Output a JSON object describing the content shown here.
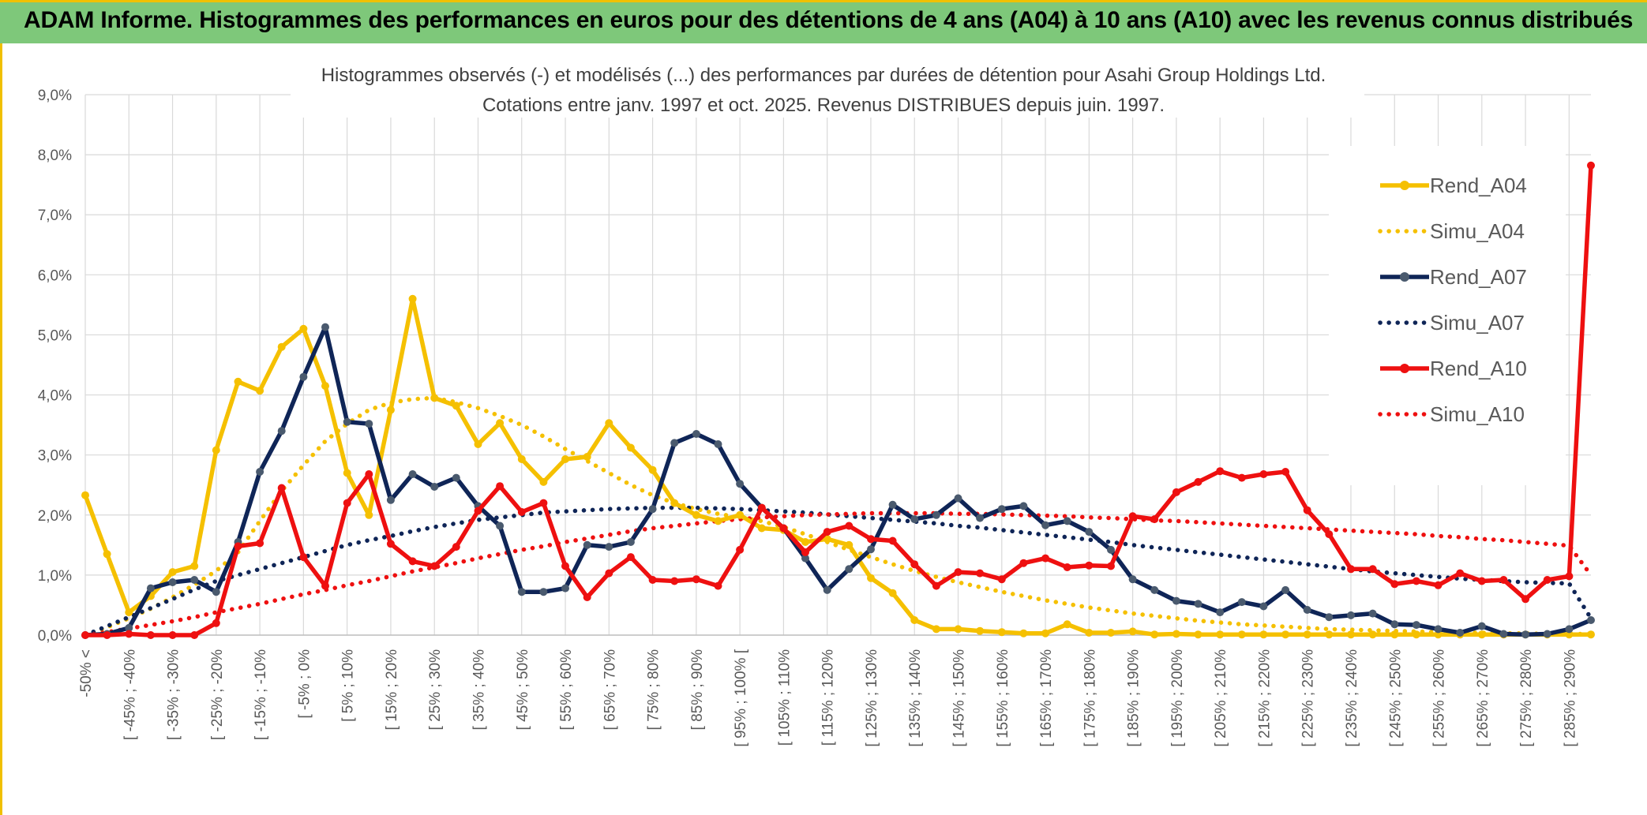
{
  "header": {
    "title": "ADAM Informe. Histogrammes des performances en euros pour des détentions de 4 ans (A04) à 10 ans (A10) avec les revenus connus distribués"
  },
  "colors": {
    "A04": "#f5c000",
    "A07": "#0f2557",
    "A10": "#ee1010",
    "banner": "#7ec87a",
    "grid": "#d9d9d9",
    "axis_text": "#595959"
  },
  "chart_data": {
    "type": "line",
    "title": "Histogrammes observés (-) et modélisés (...) des performances par durées de détention pour Asahi Group Holdings Ltd.",
    "subtitle": "Cotations entre janv. 1997 et oct. 2025. Revenus DISTRIBUES depuis juin. 1997.",
    "xlabel": "",
    "ylabel": "",
    "ylim": [
      0,
      9
    ],
    "y_ticks": [
      "0,0%",
      "1,0%",
      "2,0%",
      "3,0%",
      "4,0%",
      "5,0%",
      "6,0%",
      "7,0%",
      "8,0%",
      "9,0%"
    ],
    "grid": true,
    "legend_position": "right",
    "x_tick_labels": [
      "-50% <",
      "[ -45% ; -40%",
      "[ -35% ; -30%",
      "[ -25% ; -20%",
      "[ -15% ; -10%",
      "[ -5% ; 0%",
      "[ 5% ; 10%",
      "[ 15% ; 20%",
      "[ 25% ; 30%",
      "[ 35% ; 40%",
      "[ 45% ; 50%",
      "[ 55% ; 60%",
      "[ 65% ; 70%",
      "[ 75% ; 80%",
      "[ 85% ; 90%",
      "[ 95% ; 100% [",
      "[ 105% ; 110%",
      "[ 115% ; 120%",
      "[ 125% ; 130%",
      "[ 135% ; 140%",
      "[ 145% ; 150%",
      "[ 155% ; 160%",
      "[ 165% ; 170%",
      "[ 175% ; 180%",
      "[ 185% ; 190%",
      "[ 195% ; 200%",
      "[ 205% ; 210%",
      "[ 215% ; 220%",
      "[ 225% ; 230%",
      "[ 235% ; 240%",
      "[ 245% ; 250%",
      "[ 255% ; 260%",
      "[ 265% ; 270%",
      "[ 275% ; 280%",
      "[ 285% ; 290%"
    ],
    "categories_count": 70,
    "series": [
      {
        "name": "Rend_A04",
        "style": "solid",
        "color_key": "A04",
        "values": [
          2.33,
          1.35,
          0.38,
          0.65,
          1.05,
          1.15,
          3.08,
          4.22,
          4.07,
          4.8,
          5.1,
          4.15,
          2.7,
          2.0,
          3.75,
          5.6,
          3.95,
          3.82,
          3.18,
          3.53,
          2.93,
          2.55,
          2.93,
          2.97,
          3.53,
          3.12,
          2.75,
          2.2,
          2.0,
          1.9,
          2.0,
          1.78,
          1.75,
          1.55,
          1.6,
          1.5,
          0.95,
          0.7,
          0.25,
          0.1,
          0.1,
          0.07,
          0.05,
          0.03,
          0.03,
          0.18,
          0.04,
          0.04,
          0.06,
          0.01,
          0.02,
          0.01,
          0.01,
          0.01,
          0.01,
          0.01,
          0.01,
          0.01,
          0.01,
          0.01,
          0.01,
          0.01,
          0.01,
          0.01,
          0.01,
          0.01,
          0.01,
          0.01,
          0.01,
          0.01
        ]
      },
      {
        "name": "Simu_A04",
        "style": "dotted",
        "color_key": "A04",
        "values": [
          0.0,
          0.13,
          0.28,
          0.44,
          0.63,
          0.84,
          1.07,
          1.38,
          1.9,
          2.4,
          2.83,
          3.23,
          3.52,
          3.75,
          3.87,
          3.93,
          3.95,
          3.88,
          3.78,
          3.65,
          3.5,
          3.31,
          3.1,
          2.9,
          2.7,
          2.5,
          2.33,
          2.2,
          2.1,
          2.02,
          1.96,
          1.9,
          1.8,
          1.68,
          1.55,
          1.42,
          1.3,
          1.18,
          1.07,
          0.97,
          0.88,
          0.8,
          0.72,
          0.65,
          0.58,
          0.52,
          0.46,
          0.41,
          0.36,
          0.32,
          0.28,
          0.24,
          0.21,
          0.18,
          0.16,
          0.14,
          0.12,
          0.1,
          0.09,
          0.08,
          0.07,
          0.06,
          0.05,
          0.04,
          0.04,
          0.03,
          0.03,
          0.02,
          0.02,
          0.02
        ]
      },
      {
        "name": "Rend_A07",
        "style": "solid",
        "color_key": "A07",
        "values": [
          0.0,
          0.02,
          0.12,
          0.78,
          0.88,
          0.92,
          0.72,
          1.55,
          2.72,
          3.4,
          4.3,
          5.13,
          3.55,
          3.52,
          2.25,
          2.68,
          2.47,
          2.62,
          2.15,
          1.82,
          0.72,
          0.72,
          0.78,
          1.5,
          1.47,
          1.55,
          2.1,
          3.2,
          3.35,
          3.18,
          2.52,
          2.12,
          1.78,
          1.28,
          0.75,
          1.1,
          1.43,
          2.17,
          1.93,
          2.0,
          2.28,
          1.95,
          2.1,
          2.15,
          1.83,
          1.9,
          1.72,
          1.42,
          0.93,
          0.75,
          0.57,
          0.52,
          0.38,
          0.55,
          0.48,
          0.75,
          0.42,
          0.3,
          0.33,
          0.36,
          0.18,
          0.17,
          0.1,
          0.04,
          0.15,
          0.02,
          0.01,
          0.02,
          0.1,
          0.25
        ]
      },
      {
        "name": "Simu_A07",
        "style": "dotted",
        "color_key": "A07",
        "values": [
          0.0,
          0.15,
          0.3,
          0.45,
          0.6,
          0.76,
          0.9,
          1.0,
          1.1,
          1.2,
          1.3,
          1.4,
          1.5,
          1.58,
          1.65,
          1.73,
          1.8,
          1.86,
          1.92,
          1.96,
          2.0,
          2.04,
          2.06,
          2.08,
          2.1,
          2.11,
          2.12,
          2.12,
          2.12,
          2.11,
          2.1,
          2.08,
          2.06,
          2.04,
          2.01,
          1.98,
          1.95,
          1.92,
          1.89,
          1.86,
          1.82,
          1.79,
          1.75,
          1.71,
          1.67,
          1.63,
          1.59,
          1.55,
          1.5,
          1.46,
          1.42,
          1.38,
          1.34,
          1.3,
          1.26,
          1.22,
          1.18,
          1.14,
          1.1,
          1.06,
          1.03,
          1.0,
          0.97,
          0.94,
          0.92,
          0.9,
          0.88,
          0.87,
          0.86,
          0.28
        ]
      },
      {
        "name": "Rend_A10",
        "style": "solid",
        "color_key": "A10",
        "values": [
          0.0,
          0.0,
          0.02,
          0.0,
          0.0,
          0.0,
          0.2,
          1.48,
          1.53,
          2.45,
          1.3,
          0.82,
          2.2,
          2.68,
          1.52,
          1.23,
          1.15,
          1.47,
          2.07,
          2.48,
          2.05,
          2.2,
          1.15,
          0.63,
          1.03,
          1.3,
          0.92,
          0.9,
          0.93,
          0.82,
          1.42,
          2.12,
          1.78,
          1.38,
          1.72,
          1.82,
          1.6,
          1.57,
          1.18,
          0.82,
          1.05,
          1.03,
          0.93,
          1.2,
          1.28,
          1.13,
          1.16,
          1.15,
          1.98,
          1.93,
          2.38,
          2.55,
          2.73,
          2.62,
          2.68,
          2.72,
          2.08,
          1.68,
          1.1,
          1.1,
          0.85,
          0.9,
          0.83,
          1.03,
          0.9,
          0.92,
          0.6,
          0.92,
          0.98,
          7.82
        ]
      },
      {
        "name": "Simu_A10",
        "style": "dotted",
        "color_key": "A10",
        "values": [
          0.0,
          0.05,
          0.11,
          0.17,
          0.23,
          0.3,
          0.38,
          0.45,
          0.52,
          0.6,
          0.68,
          0.75,
          0.83,
          0.9,
          0.98,
          1.06,
          1.13,
          1.2,
          1.28,
          1.35,
          1.42,
          1.48,
          1.55,
          1.61,
          1.67,
          1.73,
          1.78,
          1.82,
          1.86,
          1.9,
          1.93,
          1.96,
          1.98,
          2.0,
          2.01,
          2.02,
          2.03,
          2.03,
          2.03,
          2.03,
          2.02,
          2.02,
          2.01,
          2.0,
          1.99,
          1.98,
          1.96,
          1.95,
          1.93,
          1.91,
          1.9,
          1.88,
          1.86,
          1.84,
          1.82,
          1.8,
          1.78,
          1.76,
          1.74,
          1.72,
          1.7,
          1.68,
          1.65,
          1.63,
          1.6,
          1.58,
          1.55,
          1.52,
          1.49,
          1.0
        ]
      }
    ]
  }
}
